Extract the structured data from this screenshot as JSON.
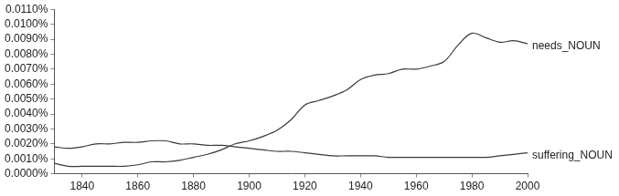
{
  "chart_data": {
    "type": "line",
    "x": [
      1830,
      1835,
      1840,
      1845,
      1850,
      1855,
      1860,
      1865,
      1870,
      1875,
      1880,
      1885,
      1890,
      1895,
      1900,
      1905,
      1910,
      1915,
      1920,
      1925,
      1930,
      1935,
      1940,
      1945,
      1950,
      1955,
      1960,
      1965,
      1970,
      1975,
      1980,
      1985,
      1990,
      1995,
      2000
    ],
    "series": [
      {
        "name": "needs_NOUN",
        "color": "#3a3a3a",
        "values": [
          0.0007,
          0.0005,
          0.0005,
          0.0005,
          0.0005,
          0.0005,
          0.0006,
          0.0008,
          0.0008,
          0.0009,
          0.0011,
          0.0013,
          0.0016,
          0.002,
          0.0022,
          0.0025,
          0.0029,
          0.0036,
          0.0046,
          0.0049,
          0.0052,
          0.0056,
          0.0063,
          0.0066,
          0.0067,
          0.007,
          0.007,
          0.0072,
          0.0075,
          0.0086,
          0.0094,
          0.0091,
          0.0088,
          0.0089,
          0.0087
        ]
      },
      {
        "name": "suffering_NOUN",
        "color": "#3a3a3a",
        "values": [
          0.0018,
          0.0017,
          0.0018,
          0.002,
          0.002,
          0.0021,
          0.0021,
          0.0022,
          0.0022,
          0.002,
          0.002,
          0.0019,
          0.0019,
          0.0018,
          0.0017,
          0.0016,
          0.0015,
          0.0015,
          0.0014,
          0.0013,
          0.0012,
          0.0012,
          0.0012,
          0.0012,
          0.0011,
          0.0011,
          0.0011,
          0.0011,
          0.0011,
          0.0011,
          0.0011,
          0.0011,
          0.0012,
          0.0013,
          0.0014
        ]
      }
    ],
    "xlim": [
      1830,
      2000
    ],
    "xticks": [
      1840,
      1860,
      1880,
      1900,
      1920,
      1940,
      1960,
      1980,
      2000
    ],
    "ylim": [
      0,
      0.011
    ],
    "yticks": [
      {
        "value": 0,
        "label": "0.0000%"
      },
      {
        "value": 0.001,
        "label": "0.0010%"
      },
      {
        "value": 0.002,
        "label": "0.0020%"
      },
      {
        "value": 0.003,
        "label": "0.0030%"
      },
      {
        "value": 0.004,
        "label": "0.0040%"
      },
      {
        "value": 0.005,
        "label": "0.0050%"
      },
      {
        "value": 0.006,
        "label": "0.0060%"
      },
      {
        "value": 0.007,
        "label": "0.0070%"
      },
      {
        "value": 0.008,
        "label": "0.0080%"
      },
      {
        "value": 0.009,
        "label": "0.0090%"
      },
      {
        "value": 0.01,
        "label": "0.0100%"
      },
      {
        "value": 0.011,
        "label": "0.0110%"
      }
    ],
    "grid": false
  }
}
